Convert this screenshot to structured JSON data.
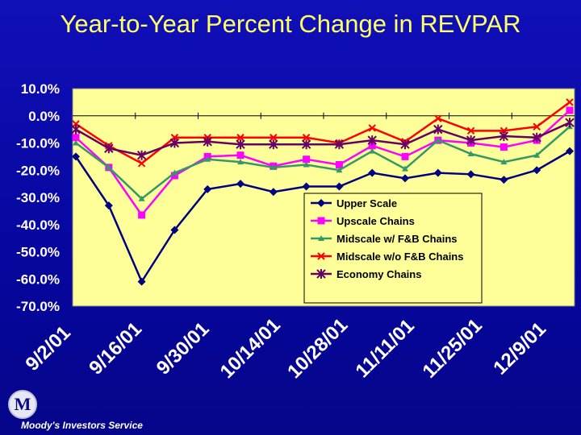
{
  "slide": {
    "title": "Year-to-Year Percent Change in REVPAR",
    "logo_letter": "M",
    "company": "Moody's Investors Service"
  },
  "colors": {
    "background": "#0a0aa0",
    "plot_area": "#ffff99",
    "title": "#ffff66"
  },
  "chart_data": {
    "type": "line",
    "title": "Year-to-Year Percent Change in REVPAR",
    "xlabel": "",
    "ylabel": "",
    "ylim": [
      -70,
      10
    ],
    "y_ticks": [
      {
        "value": 10,
        "label": "10.0%"
      },
      {
        "value": 0,
        "label": "0.0%"
      },
      {
        "value": -10,
        "label": "-10.0%"
      },
      {
        "value": -20,
        "label": "-20.0%"
      },
      {
        "value": -30,
        "label": "-30.0%"
      },
      {
        "value": -40,
        "label": "-40.0%"
      },
      {
        "value": -50,
        "label": "-50.0%"
      },
      {
        "value": -60,
        "label": "-60.0%"
      },
      {
        "value": -70,
        "label": "-70.0%"
      }
    ],
    "x_tick_labels": [
      "9/2/01",
      "9/16/01",
      "9/30/01",
      "10/14/01",
      "10/28/01",
      "11/11/01",
      "11/25/01",
      "12/9/01"
    ],
    "points_per_series": 16,
    "legend_position": "lower-right",
    "grid": false,
    "series": [
      {
        "name": "Upper Scale",
        "color": "#000080",
        "marker": "diamond",
        "values": [
          -15,
          -33,
          -61,
          -42,
          -27,
          -25,
          -28,
          -26,
          -26,
          -21,
          -23,
          -21,
          -21.5,
          -23.5,
          -20,
          -13
        ]
      },
      {
        "name": "Upscale Chains",
        "color": "#ff00ff",
        "marker": "square",
        "values": [
          -8,
          -19,
          -36.5,
          -22,
          -15,
          -14.5,
          -18.5,
          -16,
          -18,
          -11,
          -15,
          -9,
          -10,
          -11.5,
          -9,
          2
        ]
      },
      {
        "name": "Midscale w/ F&B Chains",
        "color": "#339966",
        "marker": "triangle",
        "values": [
          -10,
          -19,
          -30.5,
          -21,
          -16,
          -17,
          -19,
          -18,
          -20,
          -13,
          -19.5,
          -9,
          -14,
          -17,
          -14.5,
          -4
        ]
      },
      {
        "name": "Midscale w/o F&B Chains",
        "color": "#ff0000",
        "marker": "x",
        "values": [
          -3,
          -11,
          -17.5,
          -8,
          -8,
          -8,
          -8,
          -8,
          -10,
          -4.5,
          -9.5,
          -1,
          -5.5,
          -5.5,
          -4,
          5
        ]
      },
      {
        "name": "Economy Chains",
        "color": "#660066",
        "marker": "star",
        "values": [
          -5,
          -12,
          -14.5,
          -10,
          -9.5,
          -10.5,
          -10.5,
          -10.5,
          -10.5,
          -9,
          -10.5,
          -5,
          -9,
          -7.5,
          -8,
          -2.5
        ]
      }
    ]
  }
}
